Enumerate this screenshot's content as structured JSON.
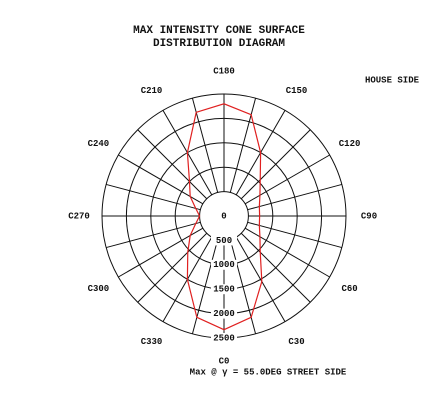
{
  "chart_data": {
    "type": "polar",
    "title": [
      "MAX INTENSITY CONE SURFACE",
      "DISTRIBUTION DIAGRAM"
    ],
    "corner_note": "HOUSE SIDE",
    "footer": "Max @ γ = 55.0DEG STREET SIDE",
    "rlim": [
      0,
      2500
    ],
    "rticks": [
      0,
      500,
      1000,
      1500,
      2000,
      2500
    ],
    "angle_ticks": [
      {
        "value": 0,
        "label": "C0"
      },
      {
        "value": 30,
        "label": "C30"
      },
      {
        "value": 60,
        "label": "C60"
      },
      {
        "value": 90,
        "label": "C90"
      },
      {
        "value": 120,
        "label": "C120"
      },
      {
        "value": 150,
        "label": "C150"
      },
      {
        "value": 180,
        "label": "C180"
      },
      {
        "value": 210,
        "label": "C210"
      },
      {
        "value": 240,
        "label": "C240"
      },
      {
        "value": 270,
        "label": "C270"
      },
      {
        "value": 300,
        "label": "C300"
      },
      {
        "value": 330,
        "label": "C330"
      }
    ],
    "series": [
      {
        "color": "#e02020",
        "angles": [
          0,
          15,
          30,
          45,
          60,
          75,
          90,
          105,
          120,
          135,
          150,
          165,
          180,
          195,
          210,
          225,
          240,
          255,
          270,
          285,
          300,
          315,
          330,
          345
        ],
        "values": [
          2330,
          2150,
          1550,
          1050,
          850,
          750,
          730,
          750,
          850,
          1050,
          1500,
          2150,
          2300,
          2200,
          1500,
          1000,
          800,
          600,
          500,
          600,
          800,
          1050,
          1500,
          2150
        ]
      }
    ]
  }
}
